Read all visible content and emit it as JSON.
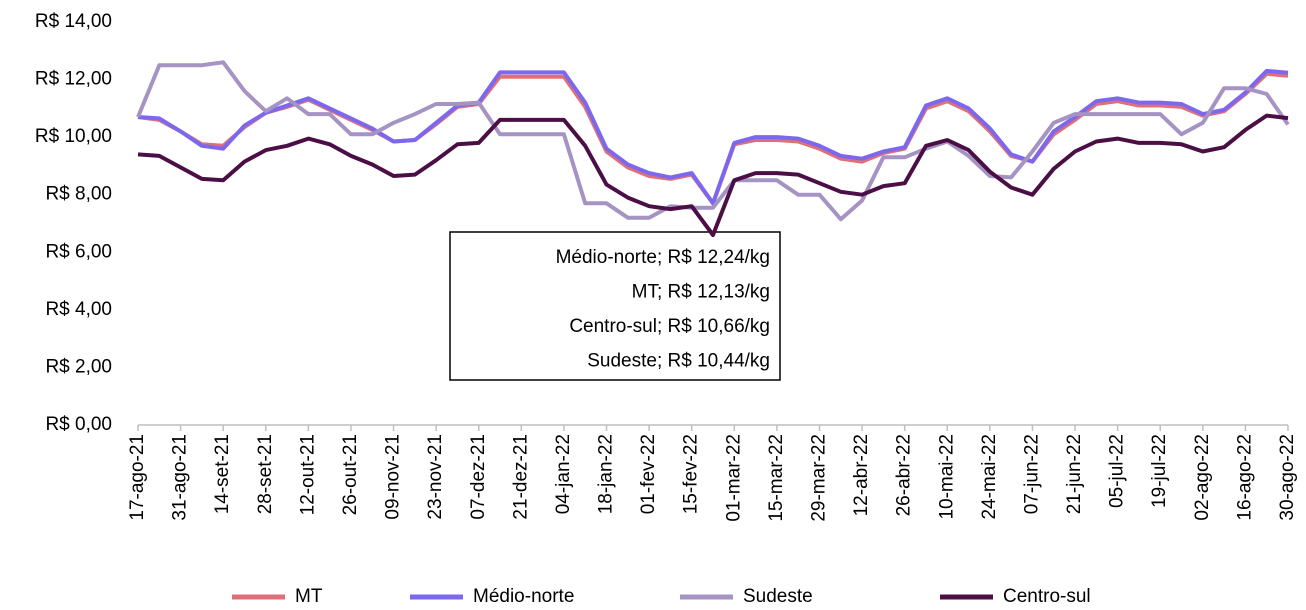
{
  "chart_data": {
    "type": "line",
    "categories": [
      "17-ago-21",
      null,
      "31-ago-21",
      null,
      "14-set-21",
      null,
      "28-set-21",
      null,
      "12-out-21",
      null,
      "26-out-21",
      null,
      "09-nov-21",
      null,
      "23-nov-21",
      null,
      "07-dez-21",
      null,
      "21-dez-21",
      null,
      "04-jan-22",
      null,
      "18-jan-22",
      null,
      "01-fev-22",
      null,
      "15-fev-22",
      null,
      "01-mar-22",
      null,
      "15-mar-22",
      null,
      "29-mar-22",
      null,
      "12-abr-22",
      null,
      "26-abr-22",
      null,
      "10-mai-22",
      null,
      "24-mai-22",
      null,
      "07-jun-22",
      null,
      "21-jun-22",
      null,
      "05-jul-22",
      null,
      "19-jul-22",
      null,
      "02-ago-22",
      null,
      "16-ago-22",
      null,
      "30-ago-22"
    ],
    "series": [
      {
        "name": "MT",
        "color": "#e07078",
        "values": [
          10.7,
          10.6,
          10.2,
          9.75,
          9.7,
          10.35,
          10.85,
          11.05,
          11.3,
          10.95,
          10.6,
          10.25,
          9.85,
          9.9,
          10.45,
          11.05,
          11.15,
          12.1,
          12.1,
          12.1,
          12.1,
          11.05,
          9.5,
          8.95,
          8.65,
          8.55,
          8.7,
          7.7,
          9.75,
          9.9,
          9.9,
          9.85,
          9.6,
          9.25,
          9.15,
          9.45,
          9.6,
          11.0,
          11.25,
          10.9,
          10.2,
          9.35,
          9.15,
          10.1,
          10.6,
          11.15,
          11.25,
          11.1,
          11.1,
          11.05,
          10.75,
          10.9,
          11.5,
          12.2,
          12.13
        ]
      },
      {
        "name": "Médio-norte",
        "color": "#7b68ee",
        "values": [
          10.7,
          10.65,
          10.2,
          9.7,
          9.6,
          10.4,
          10.85,
          11.1,
          11.35,
          11.0,
          10.65,
          10.3,
          9.85,
          9.9,
          10.5,
          11.1,
          11.2,
          12.25,
          12.25,
          12.25,
          12.25,
          11.2,
          9.6,
          9.05,
          8.75,
          8.6,
          8.75,
          7.7,
          9.8,
          10.0,
          10.0,
          9.95,
          9.7,
          9.35,
          9.25,
          9.5,
          9.65,
          11.1,
          11.35,
          11.0,
          10.3,
          9.4,
          9.15,
          10.2,
          10.7,
          11.25,
          11.35,
          11.2,
          11.2,
          11.15,
          10.8,
          10.95,
          11.55,
          12.3,
          12.24
        ]
      },
      {
        "name": "Sudeste",
        "color": "#a593c4",
        "values": [
          10.7,
          12.5,
          12.5,
          12.5,
          12.6,
          11.6,
          10.9,
          11.35,
          10.8,
          10.8,
          10.1,
          10.1,
          10.5,
          10.8,
          11.15,
          11.15,
          11.2,
          10.1,
          10.1,
          10.1,
          10.1,
          7.7,
          7.7,
          7.2,
          7.2,
          7.6,
          7.55,
          7.55,
          8.5,
          8.5,
          8.5,
          8.0,
          8.0,
          7.15,
          7.8,
          9.3,
          9.3,
          9.6,
          9.85,
          9.35,
          8.65,
          8.6,
          9.5,
          10.5,
          10.8,
          10.8,
          10.8,
          10.8,
          10.8,
          10.1,
          10.5,
          11.7,
          11.7,
          11.5,
          10.44
        ]
      },
      {
        "name": "Centro-sul",
        "color": "#4b0f45",
        "values": [
          9.4,
          9.35,
          8.95,
          8.55,
          8.5,
          9.15,
          9.55,
          9.7,
          9.95,
          9.75,
          9.35,
          9.05,
          8.65,
          8.7,
          9.2,
          9.75,
          9.8,
          10.6,
          10.6,
          10.6,
          10.6,
          9.7,
          8.35,
          7.9,
          7.6,
          7.5,
          7.6,
          6.6,
          8.5,
          8.75,
          8.75,
          8.7,
          8.4,
          8.1,
          8.0,
          8.3,
          8.4,
          9.7,
          9.9,
          9.55,
          8.8,
          8.25,
          8.0,
          8.9,
          9.5,
          9.85,
          9.95,
          9.8,
          9.8,
          9.75,
          9.5,
          9.65,
          10.25,
          10.75,
          10.66
        ]
      }
    ],
    "ylim": [
      0,
      14
    ],
    "yticks": [
      {
        "value": 0,
        "label": "R$ 0,00"
      },
      {
        "value": 2,
        "label": "R$ 2,00"
      },
      {
        "value": 4,
        "label": "R$ 4,00"
      },
      {
        "value": 6,
        "label": "R$ 6,00"
      },
      {
        "value": 8,
        "label": "R$ 8,00"
      },
      {
        "value": 10,
        "label": "R$ 10,00"
      },
      {
        "value": 12,
        "label": "R$ 12,00"
      },
      {
        "value": 14,
        "label": "R$ 14,00"
      }
    ],
    "grid": false,
    "legend": "bottom",
    "annotation": [
      "Médio-norte; R$ 12,24/kg",
      "MT; R$ 12,13/kg",
      "Centro-sul; R$ 10,66/kg",
      "Sudeste; R$ 10,44/kg"
    ]
  }
}
